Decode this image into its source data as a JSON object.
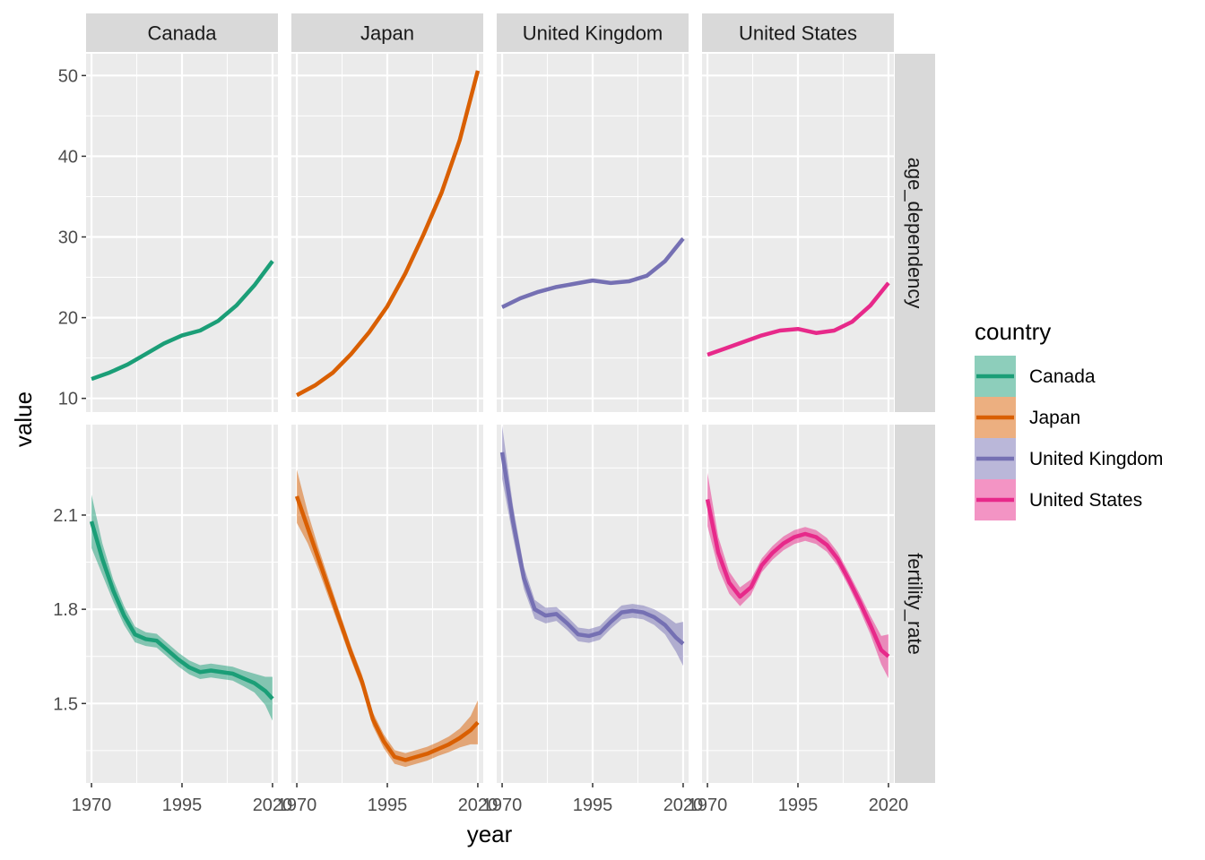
{
  "chart_data": {
    "type": "line",
    "xlabel": "year",
    "ylabel": "value",
    "facet_columns": [
      "Canada",
      "Japan",
      "United Kingdom",
      "United States"
    ],
    "facet_rows": [
      "age_dependency",
      "fertility_rate"
    ],
    "x_ticks": [
      1970,
      1995,
      2020
    ],
    "xlim": [
      1968.5,
      2021.5
    ],
    "legend": {
      "title": "country",
      "position": "right",
      "items": [
        "Canada",
        "Japan",
        "United Kingdom",
        "United States"
      ]
    },
    "colors": {
      "Canada": "#1B9E77",
      "Japan": "#D95F02",
      "United Kingdom": "#7570B3",
      "United States": "#E7298A"
    },
    "panel_background": "#EBEBEB",
    "strip_background": "#D9D9D9",
    "rows": {
      "age_dependency": {
        "ylim": [
          8.3,
          52.7
        ],
        "y_ticks": [
          10,
          20,
          30,
          40,
          50
        ],
        "series": {
          "Canada": {
            "x": [
              1970,
              1975,
              1980,
              1985,
              1990,
              1995,
              2000,
              2005,
              2010,
              2015,
              2020
            ],
            "y": [
              12.4,
              13.2,
              14.2,
              15.5,
              16.8,
              17.8,
              18.4,
              19.6,
              21.5,
              24.0,
              27.0
            ],
            "band": [
              0.15,
              0.1,
              0.1,
              0.1,
              0.1,
              0.1,
              0.1,
              0.1,
              0.1,
              0.1,
              0.15
            ]
          },
          "Japan": {
            "x": [
              1970,
              1975,
              1980,
              1985,
              1990,
              1995,
              2000,
              2005,
              2010,
              2015,
              2020
            ],
            "y": [
              10.4,
              11.6,
              13.2,
              15.5,
              18.2,
              21.4,
              25.5,
              30.3,
              35.5,
              42.0,
              50.6
            ],
            "band": [
              0.15,
              0.1,
              0.1,
              0.1,
              0.1,
              0.1,
              0.1,
              0.1,
              0.1,
              0.1,
              0.15
            ]
          },
          "United Kingdom": {
            "x": [
              1970,
              1975,
              1980,
              1985,
              1990,
              1995,
              2000,
              2005,
              2010,
              2015,
              2020
            ],
            "y": [
              21.3,
              22.4,
              23.2,
              23.8,
              24.2,
              24.6,
              24.3,
              24.5,
              25.2,
              27.0,
              29.8
            ],
            "band": [
              0.15,
              0.1,
              0.1,
              0.1,
              0.1,
              0.1,
              0.1,
              0.1,
              0.1,
              0.1,
              0.15
            ]
          },
          "United States": {
            "x": [
              1970,
              1975,
              1980,
              1985,
              1990,
              1995,
              2000,
              2005,
              2010,
              2015,
              2020
            ],
            "y": [
              15.4,
              16.2,
              17.0,
              17.8,
              18.4,
              18.6,
              18.1,
              18.4,
              19.5,
              21.5,
              24.3
            ],
            "band": [
              0.15,
              0.1,
              0.1,
              0.1,
              0.1,
              0.1,
              0.1,
              0.1,
              0.1,
              0.1,
              0.15
            ]
          }
        }
      },
      "fertility_rate": {
        "ylim": [
          1.247,
          2.388
        ],
        "y_ticks": [
          1.5,
          1.8,
          2.1
        ],
        "series": {
          "Canada": {
            "x": [
              1970,
              1973,
              1976,
              1979,
              1982,
              1985,
              1988,
              1991,
              1994,
              1997,
              2000,
              2003,
              2006,
              2009,
              2012,
              2015,
              2018,
              2020
            ],
            "y": [
              2.08,
              1.96,
              1.86,
              1.78,
              1.72,
              1.705,
              1.7,
              1.67,
              1.64,
              1.615,
              1.6,
              1.605,
              1.6,
              1.595,
              1.58,
              1.565,
              1.54,
              1.515
            ],
            "band": [
              0.085,
              0.05,
              0.035,
              0.03,
              0.025,
              0.022,
              0.022,
              0.022,
              0.022,
              0.022,
              0.022,
              0.022,
              0.022,
              0.022,
              0.025,
              0.03,
              0.045,
              0.07
            ]
          },
          "Japan": {
            "x": [
              1970,
              1973,
              1976,
              1979,
              1982,
              1985,
              1988,
              1991,
              1994,
              1997,
              2000,
              2003,
              2006,
              2009,
              2012,
              2015,
              2018,
              2020
            ],
            "y": [
              2.16,
              2.06,
              1.96,
              1.86,
              1.76,
              1.66,
              1.57,
              1.45,
              1.38,
              1.33,
              1.32,
              1.33,
              1.34,
              1.355,
              1.37,
              1.39,
              1.415,
              1.44
            ],
            "band": [
              0.085,
              0.05,
              0.035,
              0.03,
              0.025,
              0.022,
              0.022,
              0.022,
              0.022,
              0.022,
              0.022,
              0.022,
              0.022,
              0.022,
              0.025,
              0.03,
              0.045,
              0.07
            ]
          },
          "United Kingdom": {
            "x": [
              1970,
              1973,
              1976,
              1979,
              1982,
              1985,
              1988,
              1991,
              1994,
              1997,
              2000,
              2003,
              2006,
              2009,
              2012,
              2015,
              2018,
              2020
            ],
            "y": [
              2.3,
              2.08,
              1.9,
              1.8,
              1.78,
              1.785,
              1.755,
              1.72,
              1.715,
              1.725,
              1.76,
              1.79,
              1.795,
              1.79,
              1.775,
              1.75,
              1.71,
              1.69
            ],
            "band": [
              0.085,
              0.05,
              0.035,
              0.03,
              0.025,
              0.022,
              0.022,
              0.022,
              0.022,
              0.022,
              0.022,
              0.022,
              0.022,
              0.022,
              0.025,
              0.03,
              0.045,
              0.07
            ]
          },
          "United States": {
            "x": [
              1970,
              1973,
              1976,
              1979,
              1982,
              1985,
              1988,
              1991,
              1994,
              1997,
              2000,
              2003,
              2006,
              2009,
              2012,
              2015,
              2018,
              2020
            ],
            "y": [
              2.15,
              1.98,
              1.885,
              1.84,
              1.87,
              1.94,
              1.98,
              2.01,
              2.03,
              2.04,
              2.03,
              2.005,
              1.96,
              1.895,
              1.825,
              1.75,
              1.67,
              1.65
            ],
            "band": [
              0.085,
              0.05,
              0.035,
              0.03,
              0.025,
              0.022,
              0.022,
              0.022,
              0.022,
              0.022,
              0.022,
              0.022,
              0.022,
              0.022,
              0.025,
              0.03,
              0.045,
              0.07
            ]
          }
        }
      }
    }
  }
}
